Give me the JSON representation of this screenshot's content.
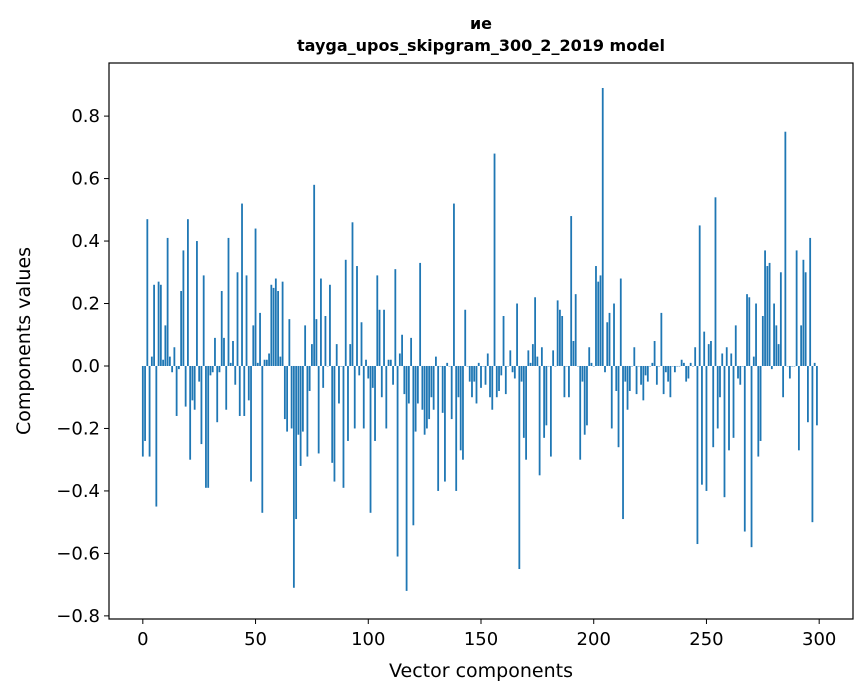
{
  "chart_data": {
    "type": "bar",
    "title_line1": "ие",
    "title_line2": "tayga_upos_skipgram_300_2_2019 model",
    "xlabel": "Vector components",
    "ylabel": "Components values",
    "xlim": [
      -15,
      315
    ],
    "ylim": [
      -0.81,
      0.97
    ],
    "xticks": [
      0,
      50,
      100,
      150,
      200,
      250,
      300
    ],
    "xtick_labels": [
      "0",
      "50",
      "100",
      "150",
      "200",
      "250",
      "300"
    ],
    "yticks": [
      -0.8,
      -0.6,
      -0.4,
      -0.2,
      0.0,
      0.2,
      0.4,
      0.6,
      0.8
    ],
    "ytick_labels": [
      "−0.8",
      "−0.6",
      "−0.4",
      "−0.2",
      "0.0",
      "0.2",
      "0.4",
      "0.6",
      "0.8"
    ],
    "bar_color": "#1f77b4",
    "values": [
      -0.29,
      -0.24,
      0.47,
      -0.29,
      0.03,
      0.26,
      -0.45,
      0.27,
      0.26,
      0.02,
      0.13,
      0.41,
      0.03,
      -0.02,
      0.06,
      -0.16,
      -0.01,
      0.24,
      0.37,
      -0.13,
      0.47,
      -0.3,
      -0.11,
      -0.14,
      0.4,
      -0.05,
      -0.25,
      0.29,
      -0.39,
      -0.39,
      -0.03,
      -0.02,
      0.09,
      -0.18,
      -0.02,
      0.24,
      0.09,
      -0.14,
      0.41,
      0.01,
      0.08,
      -0.06,
      0.3,
      -0.16,
      0.52,
      -0.16,
      0.29,
      -0.11,
      -0.37,
      0.13,
      0.44,
      0.01,
      0.17,
      -0.47,
      0.02,
      0.02,
      0.04,
      0.26,
      0.25,
      0.28,
      0.24,
      0.03,
      0.27,
      -0.17,
      -0.21,
      0.15,
      -0.2,
      -0.71,
      -0.49,
      -0.22,
      -0.32,
      -0.21,
      0.13,
      -0.29,
      -0.08,
      0.07,
      0.58,
      0.15,
      -0.28,
      0.28,
      -0.07,
      0.16,
      0.0,
      0.26,
      -0.31,
      -0.37,
      0.07,
      -0.12,
      0.0,
      -0.39,
      0.34,
      -0.24,
      0.07,
      0.46,
      -0.2,
      0.32,
      -0.03,
      0.14,
      -0.2,
      0.02,
      -0.04,
      -0.47,
      -0.07,
      -0.24,
      0.29,
      0.18,
      -0.1,
      0.18,
      -0.2,
      0.02,
      0.02,
      -0.06,
      0.31,
      -0.61,
      0.04,
      0.1,
      -0.09,
      -0.72,
      -0.12,
      0.09,
      -0.51,
      -0.21,
      -0.12,
      0.33,
      -0.14,
      -0.22,
      -0.2,
      -0.17,
      -0.1,
      -0.14,
      0.03,
      -0.4,
      0.0,
      -0.15,
      -0.37,
      0.01,
      0.0,
      -0.17,
      0.52,
      -0.4,
      -0.1,
      -0.27,
      -0.3,
      0.18,
      0.0,
      -0.05,
      -0.1,
      -0.05,
      -0.12,
      0.01,
      -0.07,
      0.0,
      -0.06,
      0.04,
      -0.1,
      -0.14,
      0.68,
      -0.1,
      -0.08,
      -0.03,
      0.16,
      -0.09,
      0.0,
      0.05,
      -0.02,
      -0.04,
      0.2,
      -0.65,
      -0.05,
      -0.23,
      -0.3,
      0.05,
      0.01,
      0.07,
      0.22,
      0.03,
      -0.35,
      0.06,
      -0.23,
      -0.19,
      0.0,
      -0.29,
      0.05,
      0.0,
      0.21,
      0.18,
      0.16,
      -0.1,
      0.0,
      -0.1,
      0.48,
      0.08,
      0.23,
      0.0,
      -0.3,
      -0.05,
      -0.22,
      -0.19,
      0.06,
      0.01,
      0.0,
      0.32,
      0.27,
      0.29,
      0.89,
      -0.02,
      0.14,
      0.17,
      -0.2,
      0.2,
      -0.08,
      -0.26,
      0.28,
      -0.49,
      -0.05,
      -0.14,
      -0.08,
      0.0,
      0.06,
      -0.09,
      0.0,
      -0.06,
      -0.11,
      -0.03,
      -0.05,
      0.0,
      0.01,
      0.08,
      -0.06,
      0.0,
      0.17,
      -0.09,
      -0.02,
      -0.05,
      -0.1,
      0.0,
      -0.02,
      0.0,
      0.0,
      0.02,
      0.01,
      -0.05,
      -0.04,
      0.01,
      0.0,
      0.06,
      -0.57,
      0.45,
      -0.38,
      0.11,
      -0.4,
      0.07,
      0.08,
      -0.26,
      0.54,
      -0.2,
      -0.1,
      0.04,
      -0.42,
      0.06,
      -0.27,
      0.04,
      -0.23,
      0.13,
      -0.04,
      -0.06,
      0.0,
      -0.53,
      0.23,
      0.22,
      -0.58,
      0.03,
      0.2,
      -0.29,
      -0.24,
      0.16,
      0.37,
      0.32,
      0.33,
      -0.01,
      0.2,
      0.13,
      0.07,
      0.3,
      -0.1,
      0.75,
      0.0,
      -0.04,
      0.0,
      0.0,
      0.37,
      -0.27,
      0.13,
      0.34,
      0.3,
      -0.18,
      0.41,
      -0.5,
      0.01,
      -0.19
    ]
  }
}
